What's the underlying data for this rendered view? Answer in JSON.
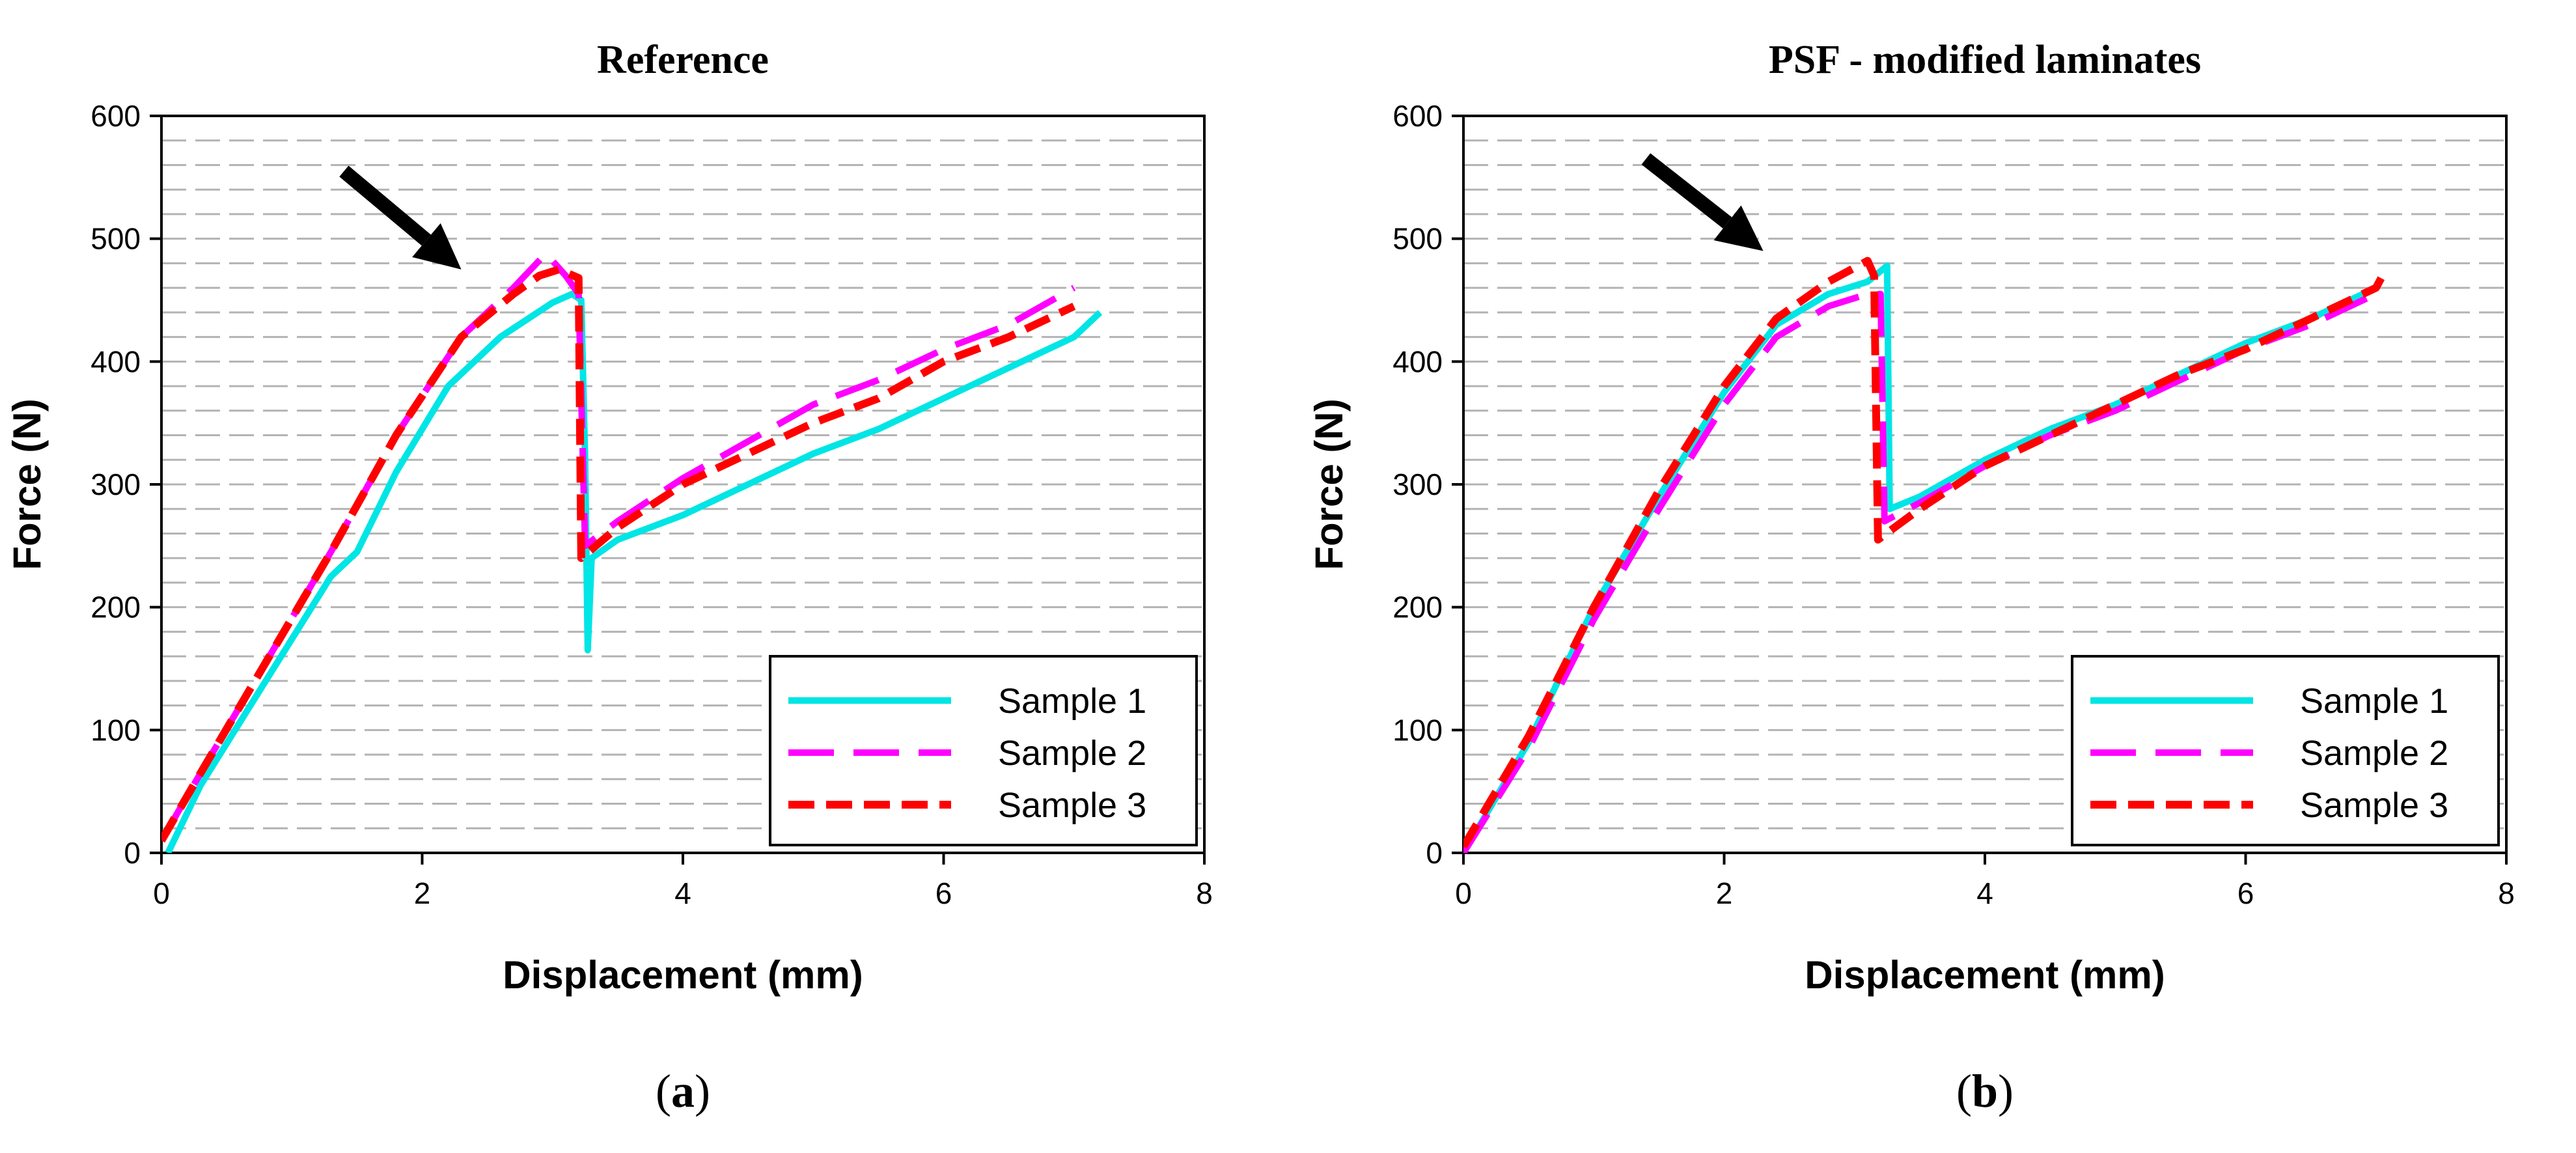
{
  "chart_data": [
    {
      "type": "line",
      "panel": "a",
      "caption_letter": "a",
      "title": "Reference",
      "xlabel": "Displacement (mm)",
      "ylabel": "Force (N)",
      "xlim": [
        0,
        8
      ],
      "ylim": [
        0,
        600
      ],
      "xticks": [
        "0",
        "2",
        "4",
        "6",
        "8"
      ],
      "yticks": [
        "0",
        "100",
        "200",
        "300",
        "400",
        "500",
        "600"
      ],
      "minor_gridlines_y_step": 20,
      "legend_position": "bottom-right",
      "arrow": {
        "from": [
          1.4,
          555
        ],
        "to": [
          2.3,
          475
        ]
      },
      "series": [
        {
          "name": "Sample 1",
          "color": "#00e5e5",
          "dash": "solid",
          "points": [
            [
              0.05,
              0
            ],
            [
              0.3,
              55
            ],
            [
              0.8,
              140
            ],
            [
              1.3,
              225
            ],
            [
              1.5,
              245
            ],
            [
              1.8,
              310
            ],
            [
              2.2,
              380
            ],
            [
              2.6,
              420
            ],
            [
              3.0,
              448
            ],
            [
              3.15,
              455
            ],
            [
              3.22,
              450
            ],
            [
              3.25,
              320
            ],
            [
              3.27,
              165
            ],
            [
              3.3,
              240
            ],
            [
              3.5,
              255
            ],
            [
              4.0,
              275
            ],
            [
              4.5,
              300
            ],
            [
              5.0,
              325
            ],
            [
              5.5,
              345
            ],
            [
              6.0,
              370
            ],
            [
              6.5,
              395
            ],
            [
              7.0,
              420
            ],
            [
              7.2,
              440
            ]
          ]
        },
        {
          "name": "Sample 2",
          "color": "#ff00ff",
          "dash": "long-dash",
          "points": [
            [
              0.0,
              10
            ],
            [
              0.3,
              65
            ],
            [
              0.8,
              155
            ],
            [
              1.3,
              245
            ],
            [
              1.8,
              340
            ],
            [
              2.3,
              420
            ],
            [
              2.7,
              460
            ],
            [
              2.95,
              488
            ],
            [
              3.1,
              470
            ],
            [
              3.2,
              455
            ],
            [
              3.25,
              250
            ],
            [
              3.5,
              270
            ],
            [
              4.0,
              305
            ],
            [
              4.5,
              335
            ],
            [
              5.0,
              365
            ],
            [
              5.5,
              385
            ],
            [
              6.0,
              410
            ],
            [
              6.5,
              430
            ],
            [
              7.0,
              460
            ]
          ]
        },
        {
          "name": "Sample 3",
          "color": "#ff0000",
          "dash": "short-dash",
          "points": [
            [
              0.0,
              10
            ],
            [
              0.3,
              65
            ],
            [
              0.8,
              155
            ],
            [
              1.3,
              245
            ],
            [
              1.8,
              340
            ],
            [
              2.3,
              420
            ],
            [
              2.7,
              455
            ],
            [
              2.9,
              470
            ],
            [
              3.05,
              475
            ],
            [
              3.2,
              468
            ],
            [
              3.22,
              240
            ],
            [
              3.5,
              265
            ],
            [
              4.0,
              300
            ],
            [
              4.5,
              325
            ],
            [
              5.0,
              350
            ],
            [
              5.5,
              370
            ],
            [
              6.0,
              400
            ],
            [
              6.5,
              420
            ],
            [
              7.0,
              445
            ]
          ]
        }
      ]
    },
    {
      "type": "line",
      "panel": "b",
      "caption_letter": "b",
      "title": "PSF - modified laminates",
      "xlabel": "Displacement (mm)",
      "ylabel": "Force (N)",
      "xlim": [
        0,
        8
      ],
      "ylim": [
        0,
        600
      ],
      "xticks": [
        "0",
        "2",
        "4",
        "6",
        "8"
      ],
      "yticks": [
        "0",
        "100",
        "200",
        "300",
        "400",
        "500",
        "600"
      ],
      "minor_gridlines_y_step": 20,
      "legend_position": "bottom-right",
      "arrow": {
        "from": [
          1.4,
          565
        ],
        "to": [
          2.3,
          490
        ]
      },
      "series": [
        {
          "name": "Sample 1",
          "color": "#00e5e5",
          "dash": "solid",
          "points": [
            [
              0.0,
              0
            ],
            [
              0.5,
              90
            ],
            [
              1.0,
              200
            ],
            [
              1.5,
              290
            ],
            [
              2.0,
              375
            ],
            [
              2.4,
              430
            ],
            [
              2.8,
              455
            ],
            [
              3.1,
              465
            ],
            [
              3.25,
              478
            ],
            [
              3.27,
              280
            ],
            [
              3.5,
              290
            ],
            [
              4.0,
              320
            ],
            [
              4.5,
              345
            ],
            [
              5.0,
              365
            ],
            [
              5.5,
              390
            ],
            [
              6.0,
              415
            ],
            [
              6.5,
              435
            ],
            [
              7.0,
              460
            ]
          ]
        },
        {
          "name": "Sample 2",
          "color": "#ff00ff",
          "dash": "long-dash",
          "points": [
            [
              0.0,
              0
            ],
            [
              0.5,
              85
            ],
            [
              1.0,
              190
            ],
            [
              1.5,
              280
            ],
            [
              2.0,
              365
            ],
            [
              2.4,
              420
            ],
            [
              2.8,
              445
            ],
            [
              3.1,
              455
            ],
            [
              3.2,
              455
            ],
            [
              3.23,
              270
            ],
            [
              3.5,
              285
            ],
            [
              4.0,
              315
            ],
            [
              4.5,
              340
            ],
            [
              5.0,
              360
            ],
            [
              5.5,
              385
            ],
            [
              6.0,
              410
            ],
            [
              6.5,
              430
            ],
            [
              7.0,
              455
            ]
          ]
        },
        {
          "name": "Sample 3",
          "color": "#ff0000",
          "dash": "short-dash",
          "points": [
            [
              0.0,
              5
            ],
            [
              0.5,
              95
            ],
            [
              1.0,
              200
            ],
            [
              1.5,
              295
            ],
            [
              2.0,
              380
            ],
            [
              2.4,
              435
            ],
            [
              2.8,
              465
            ],
            [
              3.1,
              482
            ],
            [
              3.15,
              470
            ],
            [
              3.18,
              255
            ],
            [
              3.5,
              280
            ],
            [
              4.0,
              315
            ],
            [
              4.5,
              340
            ],
            [
              5.0,
              365
            ],
            [
              5.5,
              390
            ],
            [
              6.0,
              410
            ],
            [
              6.5,
              435
            ],
            [
              7.0,
              460
            ],
            [
              7.05,
              470
            ]
          ]
        }
      ]
    }
  ]
}
